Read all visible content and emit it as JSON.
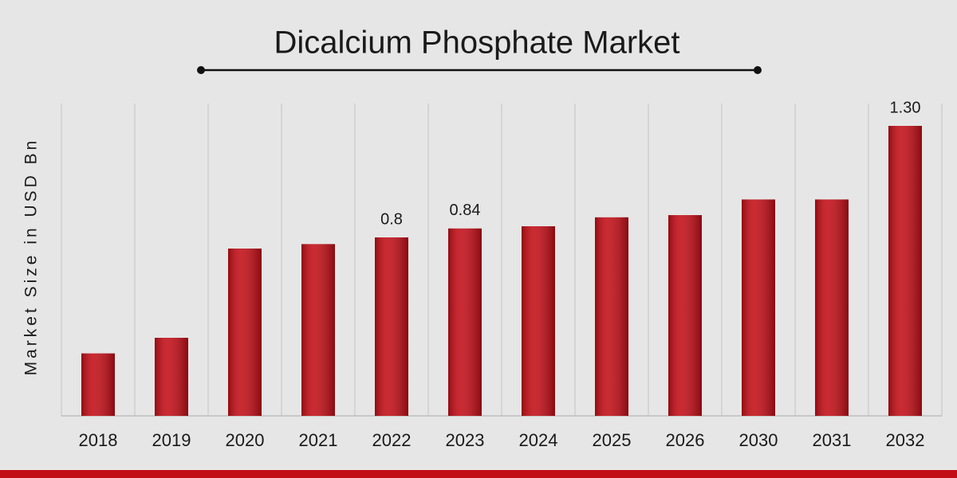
{
  "chart_data": {
    "type": "bar",
    "title": "Dicalcium Phosphate Market",
    "y_label": "Market Size in USD Bn",
    "categories": [
      "2018",
      "2019",
      "2020",
      "2021",
      "2022",
      "2023",
      "2024",
      "2025",
      "2026",
      "2030",
      "2031",
      "2032"
    ],
    "values": [
      0.28,
      0.35,
      0.75,
      0.77,
      0.8,
      0.84,
      0.85,
      0.89,
      0.9,
      0.97,
      0.97,
      1.3
    ],
    "value_labels": [
      null,
      null,
      null,
      null,
      "0.8",
      "0.84",
      null,
      null,
      null,
      null,
      null,
      "1.30"
    ],
    "color": "#c30d16",
    "ylim": [
      0,
      1.4
    ],
    "grid": true
  }
}
